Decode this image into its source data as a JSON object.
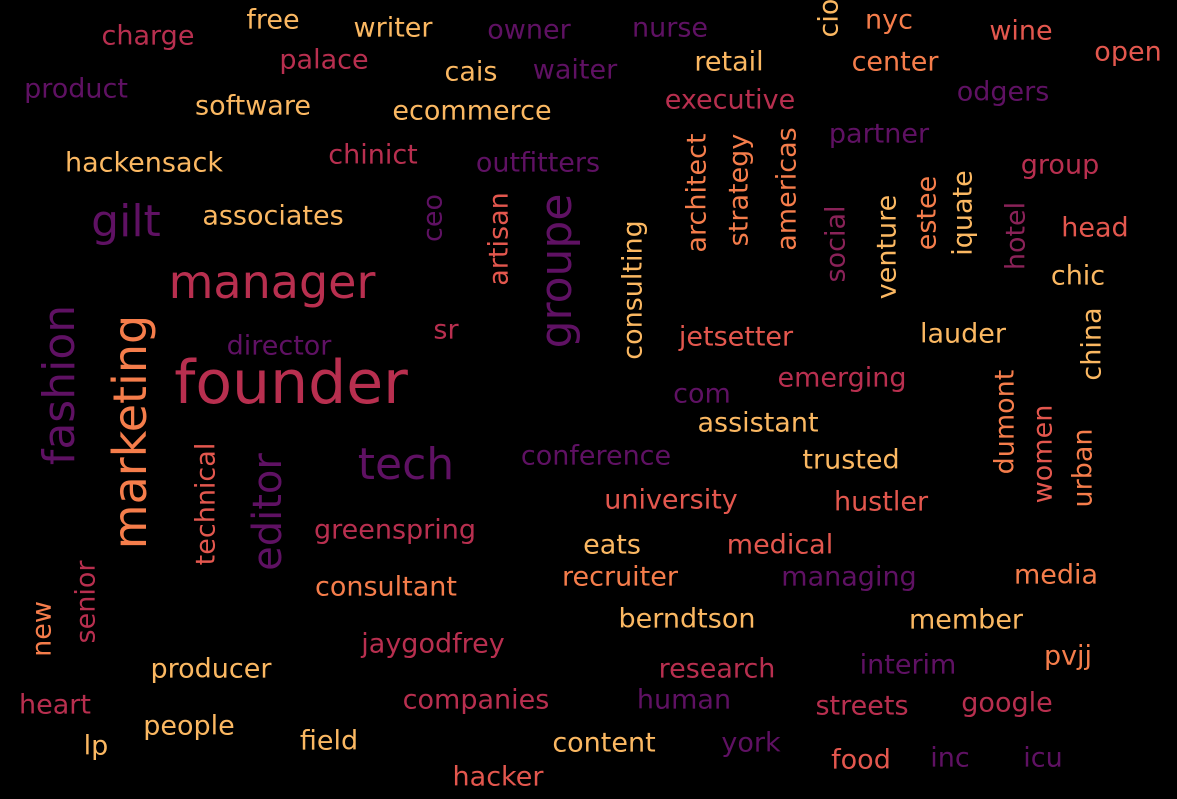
{
  "palette": [
    "#fbb862",
    "#f57d4b",
    "#e3574e",
    "#b82f4f",
    "#8a2258",
    "#5f1163"
  ],
  "words": [
    {
      "text": "founder",
      "color": "#b82f4f"
    },
    {
      "text": "manager",
      "color": "#b82f4f"
    },
    {
      "text": "marketing",
      "color": "#f57d4b"
    },
    {
      "text": "fashion",
      "color": "#5f1163"
    },
    {
      "text": "tech",
      "color": "#5f1163"
    },
    {
      "text": "groupe",
      "color": "#5f1163"
    },
    {
      "text": "editor",
      "color": "#5f1163"
    },
    {
      "text": "gilt",
      "color": "#5f1163"
    },
    {
      "text": "charge",
      "color": "#b82f4f"
    },
    {
      "text": "free",
      "color": "#fbb862"
    },
    {
      "text": "writer",
      "color": "#fbb862"
    },
    {
      "text": "owner",
      "color": "#5f1163"
    },
    {
      "text": "nurse",
      "color": "#5f1163"
    },
    {
      "text": "cio",
      "color": "#fbb862"
    },
    {
      "text": "nyc",
      "color": "#f57d4b"
    },
    {
      "text": "wine",
      "color": "#e3574e"
    },
    {
      "text": "open",
      "color": "#e3574e"
    },
    {
      "text": "palace",
      "color": "#b82f4f"
    },
    {
      "text": "cais",
      "color": "#fbb862"
    },
    {
      "text": "waiter",
      "color": "#5f1163"
    },
    {
      "text": "retail",
      "color": "#fbb862"
    },
    {
      "text": "center",
      "color": "#f57d4b"
    },
    {
      "text": "product",
      "color": "#5f1163"
    },
    {
      "text": "odgers",
      "color": "#5f1163"
    },
    {
      "text": "software",
      "color": "#fbb862"
    },
    {
      "text": "ecommerce",
      "color": "#fbb862"
    },
    {
      "text": "executive",
      "color": "#b82f4f"
    },
    {
      "text": "partner",
      "color": "#5f1163"
    },
    {
      "text": "hackensack",
      "color": "#fbb862"
    },
    {
      "text": "chinict",
      "color": "#b82f4f"
    },
    {
      "text": "outfitters",
      "color": "#5f1163"
    },
    {
      "text": "group",
      "color": "#b82f4f"
    },
    {
      "text": "architect",
      "color": "#f57d4b"
    },
    {
      "text": "strategy",
      "color": "#f57d4b"
    },
    {
      "text": "americas",
      "color": "#f57d4b"
    },
    {
      "text": "associates",
      "color": "#fbb862"
    },
    {
      "text": "ceo",
      "color": "#5f1163"
    },
    {
      "text": "artisan",
      "color": "#e3574e"
    },
    {
      "text": "consulting",
      "color": "#fbb862"
    },
    {
      "text": "social",
      "color": "#8a2258"
    },
    {
      "text": "venture",
      "color": "#fbb862"
    },
    {
      "text": "estee",
      "color": "#f57d4b"
    },
    {
      "text": "iquate",
      "color": "#fbb862"
    },
    {
      "text": "hotel",
      "color": "#8a2258"
    },
    {
      "text": "head",
      "color": "#e3574e"
    },
    {
      "text": "chic",
      "color": "#fbb862"
    },
    {
      "text": "sr",
      "color": "#b82f4f"
    },
    {
      "text": "jetsetter",
      "color": "#e3574e"
    },
    {
      "text": "lauder",
      "color": "#fbb862"
    },
    {
      "text": "china",
      "color": "#fbb862"
    },
    {
      "text": "director",
      "color": "#5f1163"
    },
    {
      "text": "emerging",
      "color": "#b82f4f"
    },
    {
      "text": "com",
      "color": "#5f1163"
    },
    {
      "text": "dumont",
      "color": "#f57d4b"
    },
    {
      "text": "assistant",
      "color": "#fbb862"
    },
    {
      "text": "women",
      "color": "#e3574e"
    },
    {
      "text": "urban",
      "color": "#f57d4b"
    },
    {
      "text": "conference",
      "color": "#5f1163"
    },
    {
      "text": "trusted",
      "color": "#fbb862"
    },
    {
      "text": "technical",
      "color": "#e3574e"
    },
    {
      "text": "university",
      "color": "#e3574e"
    },
    {
      "text": "hustler",
      "color": "#e3574e"
    },
    {
      "text": "greenspring",
      "color": "#b82f4f"
    },
    {
      "text": "eats",
      "color": "#fbb862"
    },
    {
      "text": "medical",
      "color": "#e3574e"
    },
    {
      "text": "senior",
      "color": "#b82f4f"
    },
    {
      "text": "new",
      "color": "#f57d4b"
    },
    {
      "text": "consultant",
      "color": "#f57d4b"
    },
    {
      "text": "recruiter",
      "color": "#f57d4b"
    },
    {
      "text": "managing",
      "color": "#5f1163"
    },
    {
      "text": "media",
      "color": "#f57d4b"
    },
    {
      "text": "berndtson",
      "color": "#fbb862"
    },
    {
      "text": "member",
      "color": "#fbb862"
    },
    {
      "text": "jaygodfrey",
      "color": "#b82f4f"
    },
    {
      "text": "producer",
      "color": "#fbb862"
    },
    {
      "text": "research",
      "color": "#b82f4f"
    },
    {
      "text": "interim",
      "color": "#5f1163"
    },
    {
      "text": "pvjj",
      "color": "#f57d4b"
    },
    {
      "text": "heart",
      "color": "#b82f4f"
    },
    {
      "text": "companies",
      "color": "#b82f4f"
    },
    {
      "text": "human",
      "color": "#5f1163"
    },
    {
      "text": "streets",
      "color": "#b82f4f"
    },
    {
      "text": "google",
      "color": "#b82f4f"
    },
    {
      "text": "people",
      "color": "#fbb862"
    },
    {
      "text": "lp",
      "color": "#fbb862"
    },
    {
      "text": "field",
      "color": "#fbb862"
    },
    {
      "text": "content",
      "color": "#fbb862"
    },
    {
      "text": "york",
      "color": "#5f1163"
    },
    {
      "text": "food",
      "color": "#e3574e"
    },
    {
      "text": "inc",
      "color": "#5f1163"
    },
    {
      "text": "icu",
      "color": "#5f1163"
    },
    {
      "text": "hacker",
      "color": "#e3574e"
    }
  ]
}
